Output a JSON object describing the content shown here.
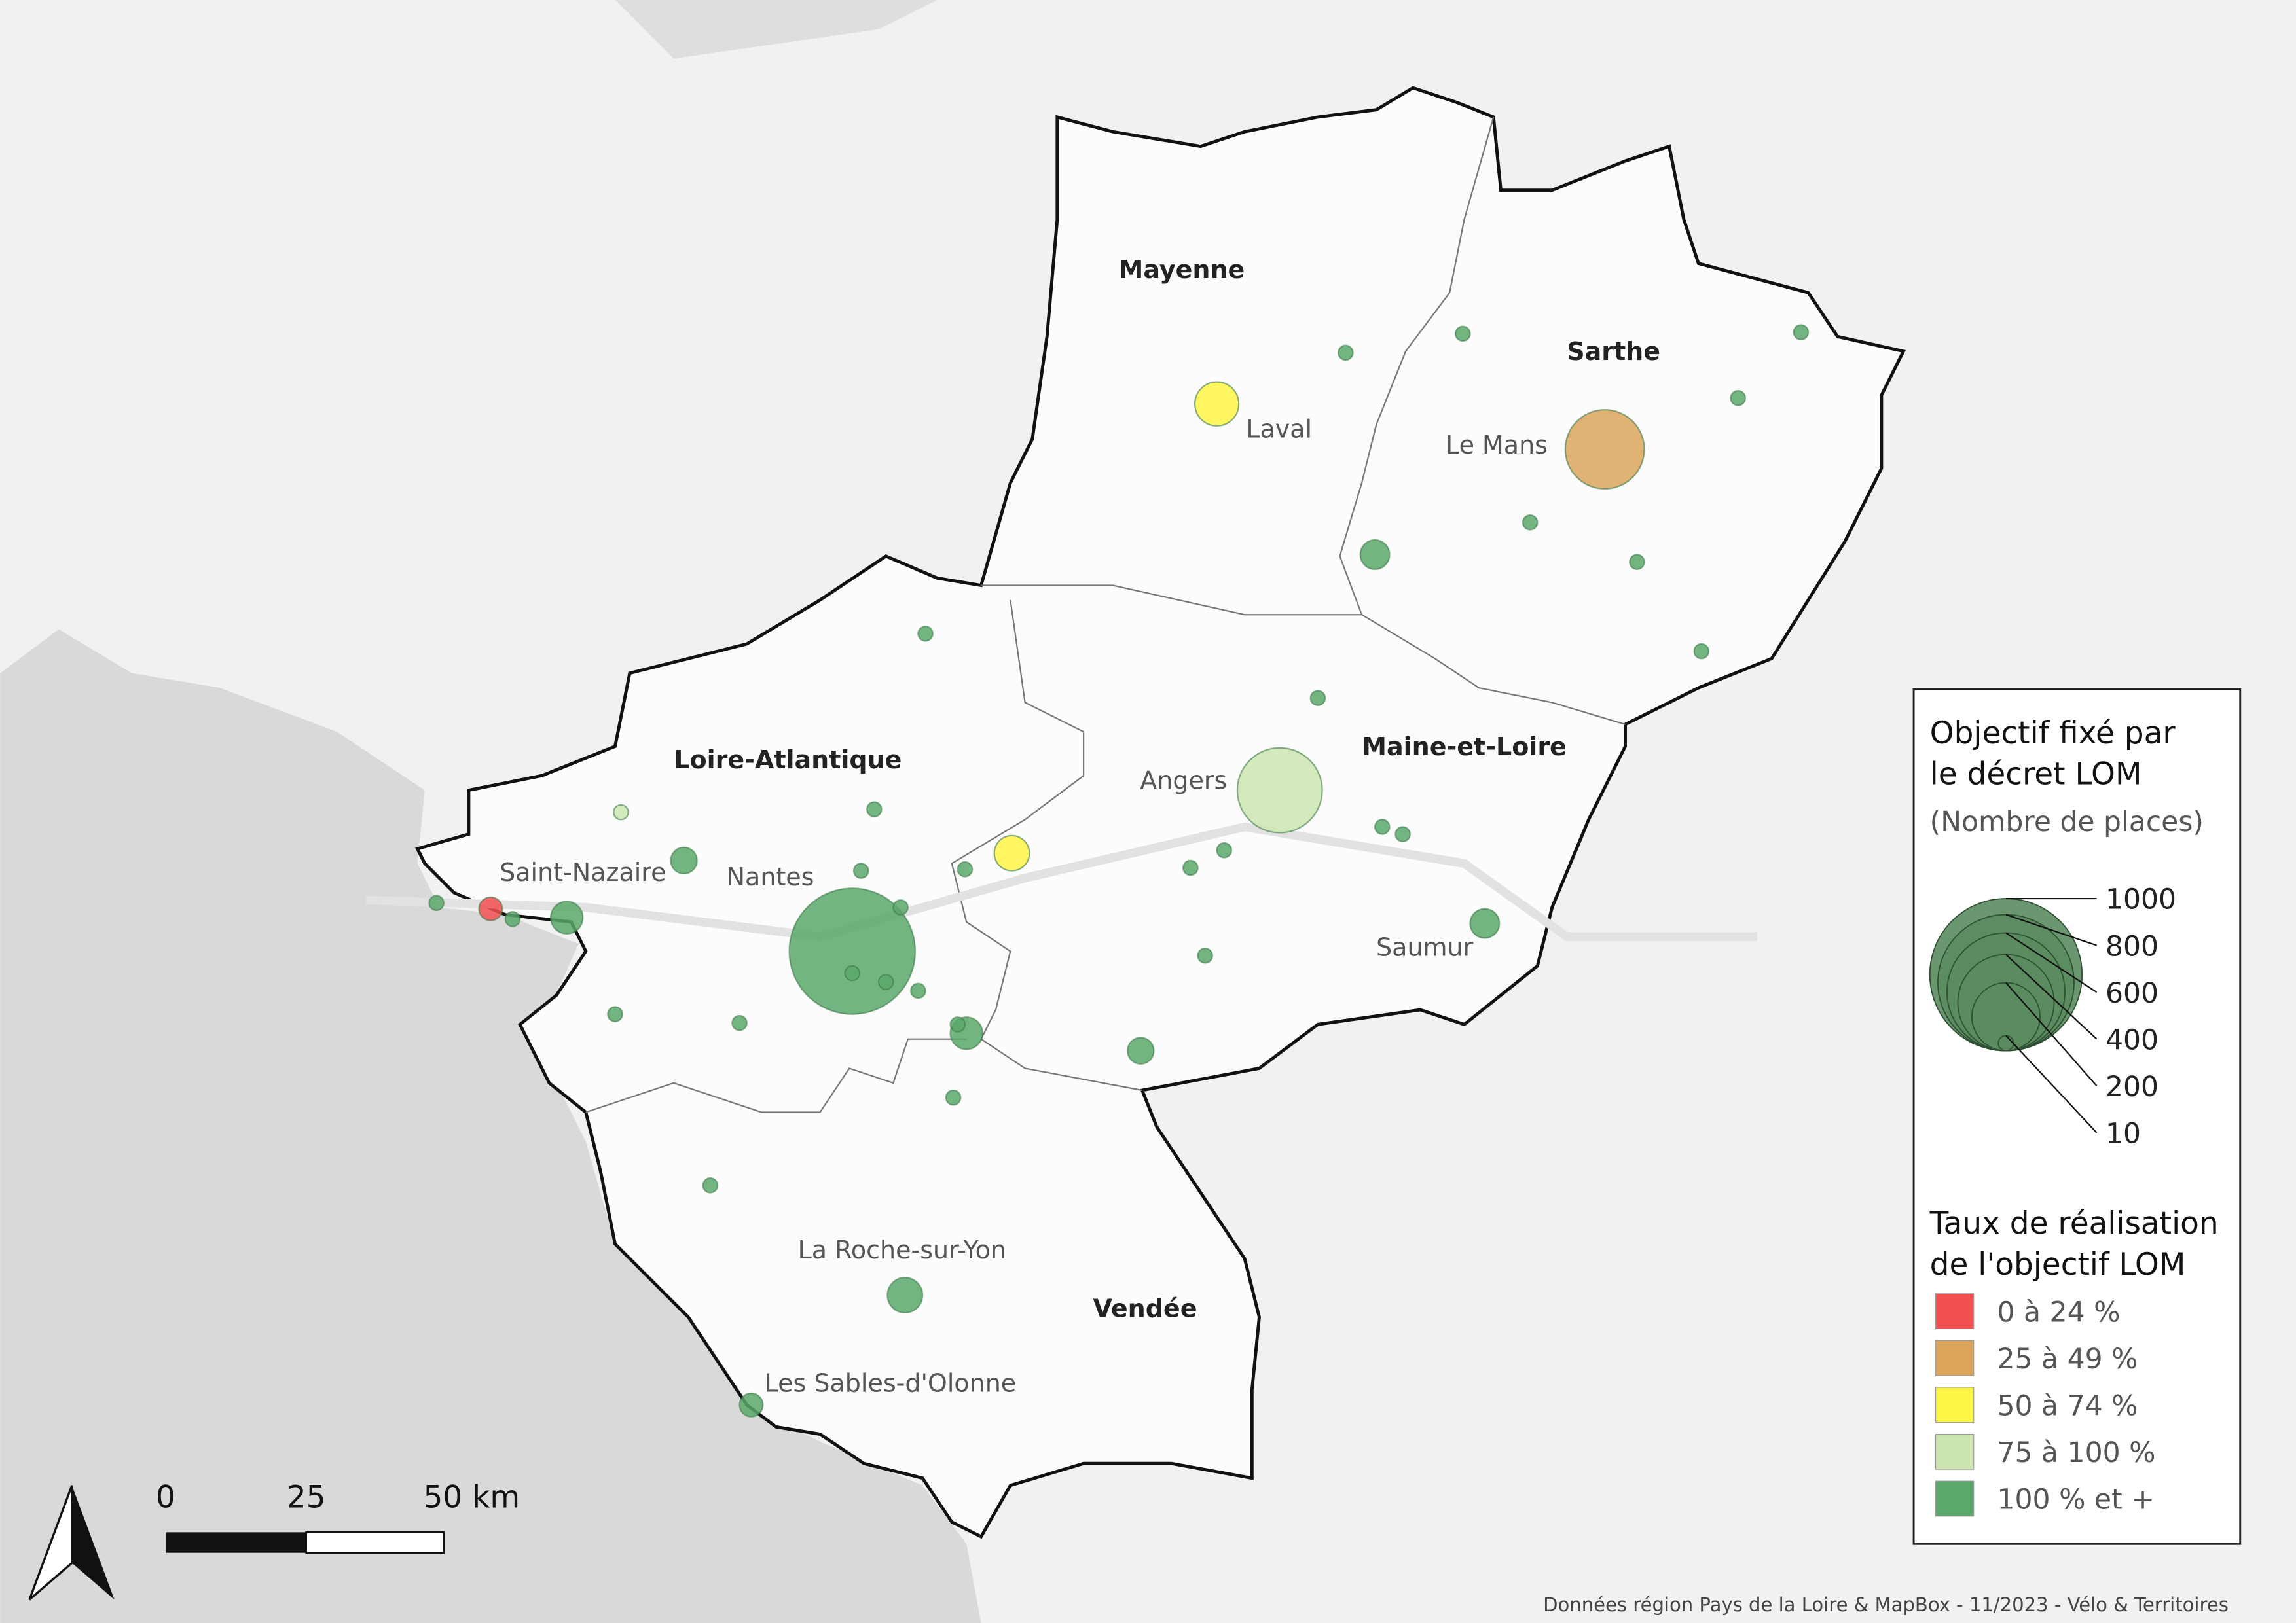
{
  "departments": [
    "Mayenne",
    "Sarthe",
    "Loire-Atlantique",
    "Maine-et-Loire",
    "Vendée"
  ],
  "cities": [
    "Laval",
    "Le Mans",
    "Angers",
    "Saint-Nazaire",
    "Nantes",
    "Saumur",
    "La Roche-sur-Yon",
    "Les Sables-d'Olonne"
  ],
  "legend": {
    "size_title": "Objectif fixé par le décret LOM",
    "size_subtitle": "(Nombre de places)",
    "size_values": [
      1000,
      800,
      600,
      400,
      200,
      10
    ],
    "color_title": "Taux de réalisation de l'objectif LOM",
    "classes": [
      {
        "label": "0 à 24 %",
        "color": "#f25050"
      },
      {
        "label": "25 à 49 %",
        "color": "#dba55a"
      },
      {
        "label": "50 à 74 %",
        "color": "#fff545"
      },
      {
        "label": "75 à 100 %",
        "color": "#cde6b0"
      },
      {
        "label": "100 % et +",
        "color": "#5aa86a"
      }
    ]
  },
  "scale_bar": [
    "0",
    "25",
    "50 km"
  ],
  "credits": "Données région Pays de la Loire & MapBox - 11/2023 - Vélo & Territoires"
}
